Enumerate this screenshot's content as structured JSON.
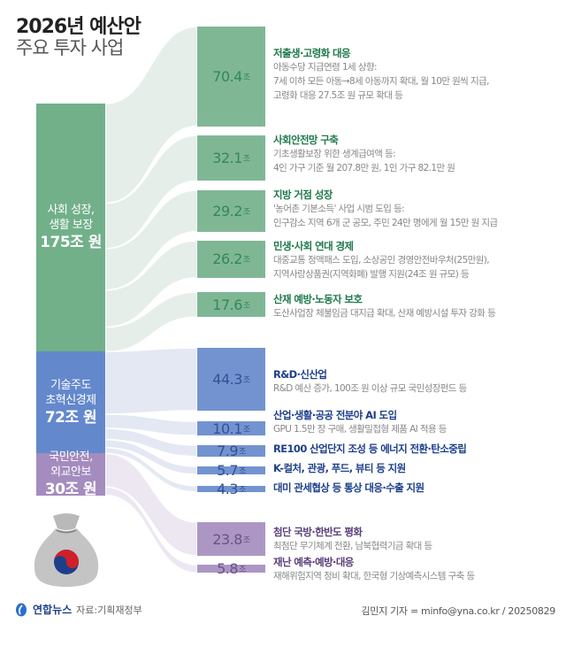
{
  "header": {
    "title": "2026년 예산안",
    "subtitle": "주요 투자 사업"
  },
  "colors": {
    "green": "#72b08a",
    "blue": "#6488cc",
    "purple": "#a48cbe",
    "green_light": "#e5eee8",
    "blue_light": "#e3e8f3",
    "purple_light": "#ece7f1",
    "green_text": "#1e7a4a",
    "blue_text": "#1d3f8a",
    "purple_text": "#5a3f7a"
  },
  "chart_data": {
    "type": "sankey",
    "unit": "조",
    "groups": [
      {
        "key": "green",
        "line1": "사회 성장,",
        "line2": "생활 보장",
        "total": "175조 원",
        "value": 175
      },
      {
        "key": "blue",
        "line1": "기술주도",
        "line2": "초혁신경제",
        "total": "72조 원",
        "value": 72
      },
      {
        "key": "purple",
        "line1": "국민안전,",
        "line2": "외교안보",
        "total": "30조 원",
        "value": 30
      }
    ],
    "items": [
      {
        "group": "green",
        "value": 70.4,
        "title": "저출생·고령화 대응",
        "desc": [
          "아동수당 지급연령 1세 상향:",
          "7세 이하 모든 아동→8세 아동까지 확대, 월 10만 원씩 지급,",
          "고령화 대응 27.5조 원 규모 확대 등"
        ]
      },
      {
        "group": "green",
        "value": 32.1,
        "title": "사회안전망 구축",
        "desc": [
          "기초생활보장 위한 생계급여액 등:",
          "4인 가구 기준 월 207.8만 원, 1인 가구 82.1만 원"
        ]
      },
      {
        "group": "green",
        "value": 29.2,
        "title": "지방 거점 성장",
        "desc": [
          "'농어촌 기본소득' 사업 시범 도입 등:",
          "인구감소 지역 6개 군 공모, 주민 24만 명에게 월 15만 원 지급"
        ]
      },
      {
        "group": "green",
        "value": 26.2,
        "title": "민생·사회 연대 경제",
        "desc": [
          "대중교통 정액패스 도입, 소상공인 경영안전바우처(25만원),",
          "지역사랑상품권(지역화폐) 발행 지원(24조 원 규모) 등"
        ]
      },
      {
        "group": "green",
        "value": 17.6,
        "title": "산재 예방·노동자 보호",
        "desc": [
          "도산사업장 체불임금 대지급 확대, 산재 예방시설 투자 강화 등"
        ]
      },
      {
        "group": "blue",
        "value": 44.3,
        "title": "R&D·신산업",
        "desc": [
          "R&D 예산 증가, 100조 원 이상 규모 국민성장펀드 등"
        ]
      },
      {
        "group": "blue",
        "value": 10.1,
        "title": "산업·생활·공공 전분야 AI 도입",
        "desc": [
          "GPU 1.5만 장 구매, 생활밀접형 제품 AI 적용 등"
        ]
      },
      {
        "group": "blue",
        "value": 7.9,
        "title": "RE100 산업단지 조성 등 에너지 전환·탄소중립",
        "desc": []
      },
      {
        "group": "blue",
        "value": 5.7,
        "title": "K-컬처, 관광, 푸드, 뷰티 등 지원",
        "desc": []
      },
      {
        "group": "blue",
        "value": 4.3,
        "title": "대미 관세협상 등 통상 대응·수출 지원",
        "desc": []
      },
      {
        "group": "purple",
        "value": 23.8,
        "title": "첨단 국방·한반도 평화",
        "desc": [
          "최첨단 무기체계 전환, 남북협력기금 확대 등"
        ]
      },
      {
        "group": "purple",
        "value": 5.8,
        "title": "재난 예측·예방·대응",
        "desc": [
          "재해위험지역 정비 확대, 한국형 기상예측시스템 구축 등"
        ]
      }
    ]
  },
  "footer": {
    "logo": "연합뉴스",
    "source": "자료:기획재정부",
    "credit": "김민지 기자 = minfo@yna.co.kr / 20250829"
  }
}
